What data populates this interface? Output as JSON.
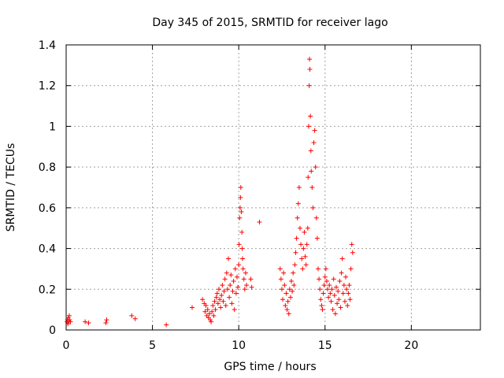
{
  "chart_data": {
    "type": "scatter",
    "title": "Day 345 of 2015, SRMTID for receiver lago",
    "xlabel": "GPS time / hours",
    "ylabel": "SRMTID / TECUs",
    "xlim": [
      0,
      24
    ],
    "ylim": [
      0,
      1.4
    ],
    "xticks": [
      0,
      5,
      10,
      15,
      20
    ],
    "xtick_labels": [
      "0",
      "5",
      "10",
      "15",
      "20"
    ],
    "yticks": [
      0,
      0.2,
      0.4,
      0.6,
      0.8,
      1.0,
      1.2,
      1.4
    ],
    "ytick_labels": [
      "0",
      "0.2",
      "0.4",
      "0.6",
      "0.8",
      "1",
      "1.2",
      "1.4"
    ],
    "grid": true,
    "marker": "+",
    "color": "#ff0000",
    "series": [
      {
        "name": "SRMTID",
        "points": [
          [
            0.05,
            0.04
          ],
          [
            0.08,
            0.05
          ],
          [
            0.1,
            0.03
          ],
          [
            0.12,
            0.06
          ],
          [
            0.15,
            0.04
          ],
          [
            0.18,
            0.07
          ],
          [
            0.2,
            0.05
          ],
          [
            0.25,
            0.04
          ],
          [
            1.1,
            0.04
          ],
          [
            1.3,
            0.035
          ],
          [
            2.3,
            0.035
          ],
          [
            2.35,
            0.05
          ],
          [
            3.8,
            0.07
          ],
          [
            4.0,
            0.055
          ],
          [
            5.8,
            0.025
          ],
          [
            7.3,
            0.11
          ],
          [
            7.9,
            0.15
          ],
          [
            8.0,
            0.13
          ],
          [
            8.05,
            0.09
          ],
          [
            8.1,
            0.12
          ],
          [
            8.15,
            0.07
          ],
          [
            8.2,
            0.1
          ],
          [
            8.25,
            0.06
          ],
          [
            8.3,
            0.08
          ],
          [
            8.35,
            0.05
          ],
          [
            8.4,
            0.04
          ],
          [
            8.45,
            0.09
          ],
          [
            8.5,
            0.12
          ],
          [
            8.55,
            0.07
          ],
          [
            8.6,
            0.14
          ],
          [
            8.65,
            0.1
          ],
          [
            8.7,
            0.16
          ],
          [
            8.75,
            0.18
          ],
          [
            8.8,
            0.13
          ],
          [
            8.85,
            0.2
          ],
          [
            8.9,
            0.15
          ],
          [
            8.95,
            0.11
          ],
          [
            9.0,
            0.17
          ],
          [
            9.05,
            0.22
          ],
          [
            9.1,
            0.14
          ],
          [
            9.15,
            0.19
          ],
          [
            9.2,
            0.25
          ],
          [
            9.25,
            0.12
          ],
          [
            9.3,
            0.28
          ],
          [
            9.35,
            0.2
          ],
          [
            9.4,
            0.35
          ],
          [
            9.45,
            0.16
          ],
          [
            9.5,
            0.22
          ],
          [
            9.55,
            0.27
          ],
          [
            9.6,
            0.13
          ],
          [
            9.65,
            0.19
          ],
          [
            9.7,
            0.24
          ],
          [
            9.75,
            0.1
          ],
          [
            9.8,
            0.3
          ],
          [
            9.85,
            0.18
          ],
          [
            9.9,
            0.26
          ],
          [
            9.95,
            0.21
          ],
          [
            10.0,
            0.32
          ],
          [
            10.02,
            0.42
          ],
          [
            10.05,
            0.55
          ],
          [
            10.08,
            0.6
          ],
          [
            10.1,
            0.65
          ],
          [
            10.12,
            0.7
          ],
          [
            10.15,
            0.58
          ],
          [
            10.18,
            0.48
          ],
          [
            10.2,
            0.4
          ],
          [
            10.22,
            0.35
          ],
          [
            10.25,
            0.3
          ],
          [
            10.3,
            0.25
          ],
          [
            10.35,
            0.2
          ],
          [
            10.4,
            0.28
          ],
          [
            10.45,
            0.22
          ],
          [
            10.7,
            0.25
          ],
          [
            10.75,
            0.21
          ],
          [
            11.2,
            0.53
          ],
          [
            12.4,
            0.3
          ],
          [
            12.45,
            0.25
          ],
          [
            12.5,
            0.2
          ],
          [
            12.55,
            0.15
          ],
          [
            12.6,
            0.28
          ],
          [
            12.65,
            0.22
          ],
          [
            12.7,
            0.12
          ],
          [
            12.75,
            0.18
          ],
          [
            12.8,
            0.1
          ],
          [
            12.85,
            0.14
          ],
          [
            12.9,
            0.08
          ],
          [
            12.95,
            0.2
          ],
          [
            13.0,
            0.16
          ],
          [
            13.05,
            0.24
          ],
          [
            13.1,
            0.19
          ],
          [
            13.15,
            0.28
          ],
          [
            13.2,
            0.22
          ],
          [
            13.25,
            0.32
          ],
          [
            13.3,
            0.38
          ],
          [
            13.35,
            0.45
          ],
          [
            13.4,
            0.55
          ],
          [
            13.45,
            0.62
          ],
          [
            13.5,
            0.7
          ],
          [
            13.55,
            0.5
          ],
          [
            13.6,
            0.42
          ],
          [
            13.65,
            0.35
          ],
          [
            13.7,
            0.3
          ],
          [
            13.75,
            0.4
          ],
          [
            13.8,
            0.48
          ],
          [
            13.85,
            0.36
          ],
          [
            13.9,
            0.32
          ],
          [
            13.95,
            0.42
          ],
          [
            14.0,
            0.5
          ],
          [
            14.02,
            0.75
          ],
          [
            14.05,
            1.0
          ],
          [
            14.08,
            1.2
          ],
          [
            14.1,
            1.33
          ],
          [
            14.12,
            1.28
          ],
          [
            14.15,
            1.05
          ],
          [
            14.18,
            0.88
          ],
          [
            14.2,
            0.78
          ],
          [
            14.25,
            0.7
          ],
          [
            14.3,
            0.6
          ],
          [
            14.35,
            0.92
          ],
          [
            14.4,
            0.98
          ],
          [
            14.45,
            0.8
          ],
          [
            14.5,
            0.55
          ],
          [
            14.55,
            0.45
          ],
          [
            14.6,
            0.3
          ],
          [
            14.65,
            0.25
          ],
          [
            14.7,
            0.2
          ],
          [
            14.75,
            0.15
          ],
          [
            14.8,
            0.12
          ],
          [
            14.85,
            0.1
          ],
          [
            14.9,
            0.18
          ],
          [
            14.95,
            0.22
          ],
          [
            15.0,
            0.26
          ],
          [
            15.05,
            0.3
          ],
          [
            15.1,
            0.24
          ],
          [
            15.15,
            0.2
          ],
          [
            15.2,
            0.16
          ],
          [
            15.25,
            0.22
          ],
          [
            15.3,
            0.18
          ],
          [
            15.35,
            0.14
          ],
          [
            15.4,
            0.2
          ],
          [
            15.45,
            0.1
          ],
          [
            15.5,
            0.25
          ],
          [
            15.55,
            0.17
          ],
          [
            15.6,
            0.08
          ],
          [
            15.65,
            0.21
          ],
          [
            15.7,
            0.13
          ],
          [
            15.75,
            0.19
          ],
          [
            15.8,
            0.15
          ],
          [
            15.85,
            0.24
          ],
          [
            15.9,
            0.11
          ],
          [
            15.95,
            0.28
          ],
          [
            16.0,
            0.35
          ],
          [
            16.05,
            0.18
          ],
          [
            16.1,
            0.22
          ],
          [
            16.15,
            0.14
          ],
          [
            16.2,
            0.26
          ],
          [
            16.25,
            0.2
          ],
          [
            16.3,
            0.12
          ],
          [
            16.35,
            0.18
          ],
          [
            16.4,
            0.22
          ],
          [
            16.45,
            0.15
          ],
          [
            16.5,
            0.3
          ],
          [
            16.55,
            0.42
          ],
          [
            16.6,
            0.38
          ]
        ]
      }
    ]
  }
}
